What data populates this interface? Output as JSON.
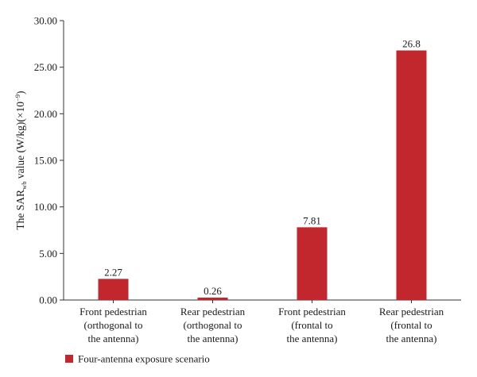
{
  "chart_data": {
    "type": "bar",
    "categories": [
      [
        "Front pedestrian",
        "(orthogonal to",
        "the antenna)"
      ],
      [
        "Rear pedestrian",
        "(orthogonal to",
        "the antenna)"
      ],
      [
        "Front pedestrian",
        "(frontal to",
        "the antenna)"
      ],
      [
        "Rear pedestrian",
        "(frontal to",
        "the antenna)"
      ]
    ],
    "series": [
      {
        "name": "Four-antenna exposure scenario",
        "values": [
          2.27,
          0.26,
          7.81,
          26.8
        ],
        "value_labels": [
          "2.27",
          "0.26",
          "7.81",
          "26.8"
        ],
        "color": "#c1272d"
      }
    ],
    "ylabel": {
      "prefix": "The SAR",
      "subscript": "wb",
      "middle": " value (W/kg)(×10",
      "superscript": "−9",
      "suffix": ")"
    },
    "ylim": [
      0,
      30
    ],
    "yticks": [
      "0.00",
      "5.00",
      "10.00",
      "15.00",
      "20.00",
      "25.00",
      "30.00"
    ],
    "grid": false,
    "legend_position": "bottom-left"
  }
}
